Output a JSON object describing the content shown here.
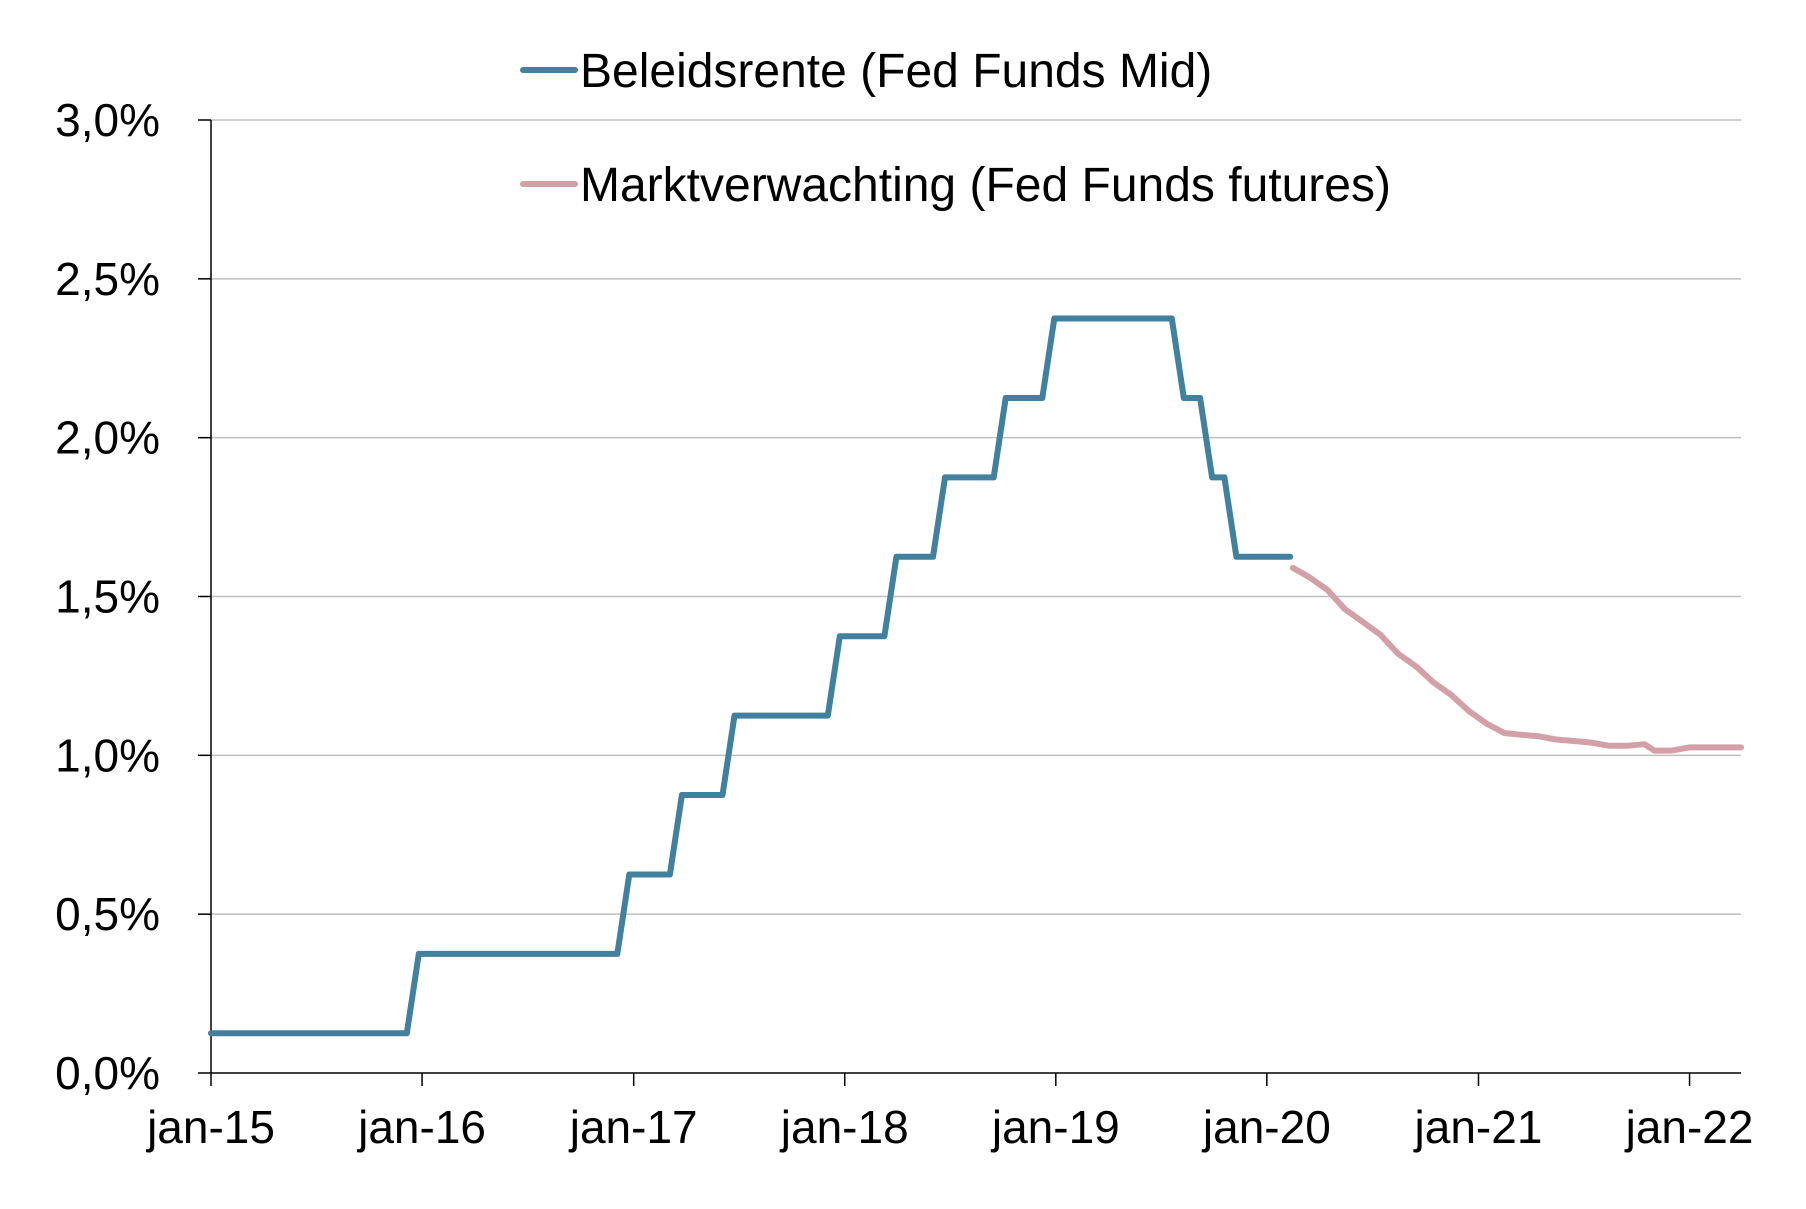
{
  "chart_data": {
    "type": "line",
    "title": "",
    "xlabel": "",
    "ylabel": "",
    "ylim": [
      0,
      3.0
    ],
    "y_ticks": [
      "0,0%",
      "0,5%",
      "1,0%",
      "1,5%",
      "2,0%",
      "2,5%",
      "3,0%"
    ],
    "x_ticks": [
      "jan-15",
      "jan-16",
      "jan-17",
      "jan-18",
      "jan-19",
      "jan-20",
      "jan-21",
      "jan-22"
    ],
    "grid": "horizontal",
    "legend_position": "top-center",
    "series": [
      {
        "name": "Beleidsrente (Fed Funds Mid)",
        "color": "#41809f",
        "step": true,
        "points": [
          [
            "2015-01-01",
            0.125
          ],
          [
            "2015-12-16",
            0.375
          ],
          [
            "2016-12-14",
            0.625
          ],
          [
            "2017-03-15",
            0.875
          ],
          [
            "2017-06-14",
            1.125
          ],
          [
            "2017-12-13",
            1.375
          ],
          [
            "2018-03-21",
            1.625
          ],
          [
            "2018-06-13",
            1.875
          ],
          [
            "2018-09-26",
            2.125
          ],
          [
            "2018-12-19",
            2.375
          ],
          [
            "2019-07-31",
            2.125
          ],
          [
            "2019-09-18",
            1.875
          ],
          [
            "2019-10-30",
            1.625
          ],
          [
            "2020-01-31",
            1.625
          ]
        ]
      },
      {
        "name": "Marktverwachting (Fed Funds futures)",
        "color": "#d4a0a8",
        "step": false,
        "points": [
          [
            "2020-02-15",
            1.59
          ],
          [
            "2020-03-15",
            1.56
          ],
          [
            "2020-04-15",
            1.52
          ],
          [
            "2020-05-15",
            1.46
          ],
          [
            "2020-06-15",
            1.42
          ],
          [
            "2020-07-15",
            1.38
          ],
          [
            "2020-08-15",
            1.32
          ],
          [
            "2020-09-15",
            1.28
          ],
          [
            "2020-10-15",
            1.23
          ],
          [
            "2020-11-15",
            1.19
          ],
          [
            "2020-12-15",
            1.14
          ],
          [
            "2021-01-15",
            1.1
          ],
          [
            "2021-02-15",
            1.07
          ],
          [
            "2021-03-15",
            1.065
          ],
          [
            "2021-04-15",
            1.06
          ],
          [
            "2021-05-15",
            1.05
          ],
          [
            "2021-06-15",
            1.045
          ],
          [
            "2021-07-15",
            1.04
          ],
          [
            "2021-08-15",
            1.03
          ],
          [
            "2021-09-15",
            1.03
          ],
          [
            "2021-10-15",
            1.035
          ],
          [
            "2021-11-01",
            1.015
          ],
          [
            "2021-12-01",
            1.015
          ],
          [
            "2022-01-01",
            1.025
          ],
          [
            "2022-02-01",
            1.025
          ],
          [
            "2022-03-01",
            1.025
          ],
          [
            "2022-03-31",
            1.025
          ]
        ]
      }
    ]
  }
}
